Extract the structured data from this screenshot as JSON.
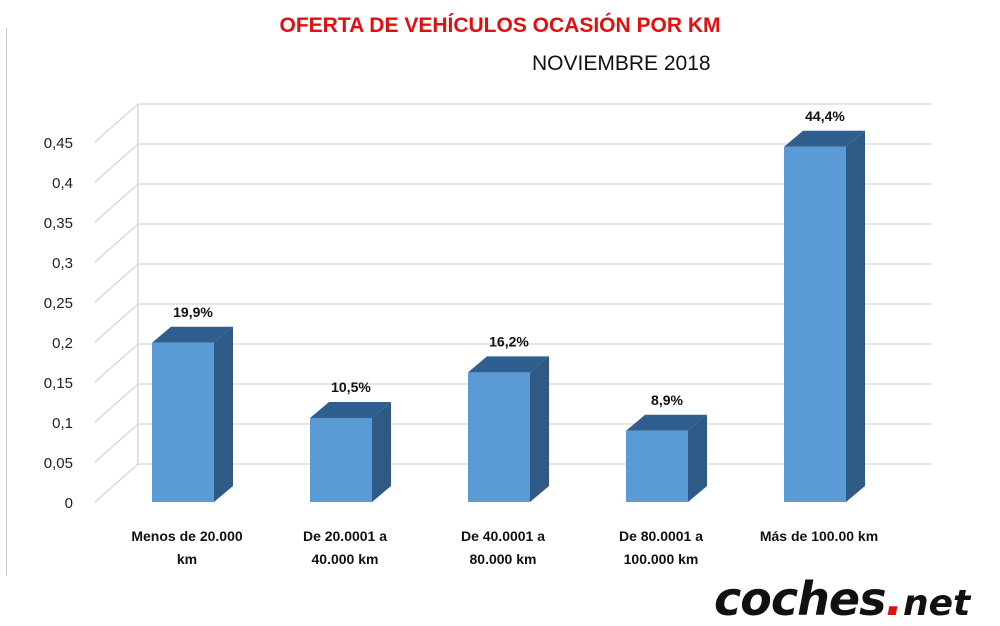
{
  "chart_data": {
    "type": "bar",
    "title": "OFERTA DE VEHÍCULOS OCASIÓN POR KM",
    "subtitle": "NOVIEMBRE 2018",
    "categories": [
      [
        "Menos de 20.000",
        "km"
      ],
      [
        "De 20.0001 a",
        "40.000 km"
      ],
      [
        "De 40.0001 a",
        "80.000 km"
      ],
      [
        "De 80.0001 a",
        "100.000 km"
      ],
      [
        "Más de 100.00 km"
      ]
    ],
    "values": [
      0.199,
      0.105,
      0.162,
      0.089,
      0.444
    ],
    "data_labels": [
      "19,9%",
      "10,5%",
      "16,2%",
      "8,9%",
      "44,4%"
    ],
    "y_ticks": [
      "0",
      "0,05",
      "0,1",
      "0,15",
      "0,2",
      "0,25",
      "0,3",
      "0,35",
      "0,4",
      "0,45"
    ],
    "ylim": [
      0,
      0.45
    ],
    "grid": true,
    "colors": {
      "bar_front": "#5b9bd5",
      "bar_side": "#2e5a85",
      "bar_top": "#2f5f8e",
      "title": "#e01010"
    }
  },
  "brand": {
    "main": "coches",
    "dot": ".",
    "suffix": "net"
  }
}
